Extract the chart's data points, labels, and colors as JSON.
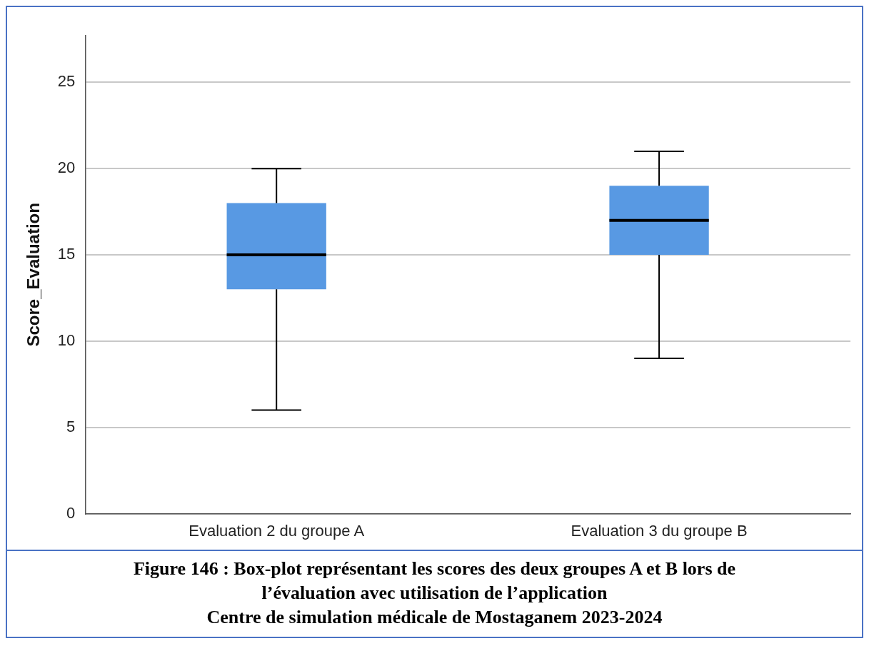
{
  "chart_data": {
    "type": "box",
    "ylabel": "Score_Evaluation",
    "categories": [
      "Evaluation 2 du groupe A",
      "Evaluation 3 du groupe B"
    ],
    "boxes": [
      {
        "low": 6,
        "q1": 13,
        "median": 15,
        "q3": 18,
        "high": 20
      },
      {
        "low": 9,
        "q1": 15,
        "median": 17,
        "q3": 19,
        "high": 21
      }
    ],
    "color": "#5899e3",
    "ylim": [
      0,
      27.7
    ],
    "yticks": [
      0,
      5,
      10,
      15,
      20,
      25
    ],
    "grid": "y",
    "legend": false,
    "annotations": [
      "Figure 146 : Box-plot représentant les scores des deux groupes A et B lors de",
      "l’évaluation avec utilisation de l’application",
      "Centre de simulation médicale de Mostaganem 2023-2024"
    ]
  }
}
